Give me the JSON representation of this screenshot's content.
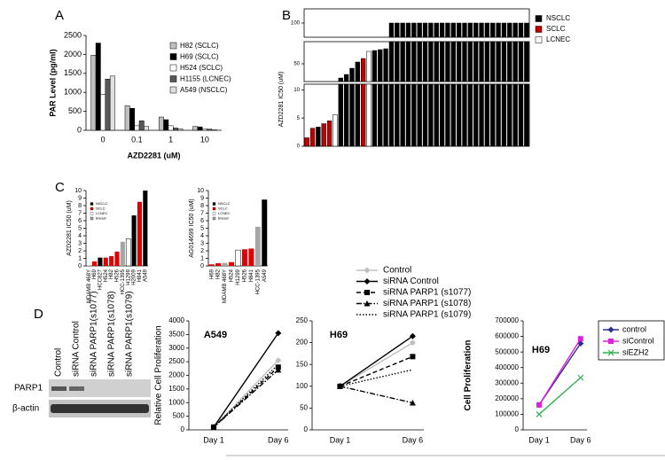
{
  "panel_labels": [
    "A",
    "B",
    "C",
    "D"
  ],
  "blot": {
    "lanes": [
      "Control",
      "siRNA Control",
      "siRNA PARP1(s1077)",
      "siRNA PARP1(s1078)",
      "siRNA PARP1(s1079)"
    ],
    "rows": [
      "PARP1",
      "β-actin"
    ]
  },
  "chart_data": [
    {
      "type": "grouped-bar",
      "y_label": "PAR Level (pg/ml)",
      "x_label": "AZD2281 (uM)",
      "categories": [
        "0",
        "0.1",
        "1",
        "10"
      ],
      "series": [
        {
          "name": "H82 (SCLC)",
          "color": "#bfbfbf",
          "values": [
            1980,
            650,
            350,
            100
          ]
        },
        {
          "name": "H69 (SCLC)",
          "color": "#000000",
          "values": [
            2300,
            580,
            280,
            90
          ]
        },
        {
          "name": "H524 (SCLC)",
          "color": "#ffffff",
          "values": [
            950,
            120,
            120,
            40
          ]
        },
        {
          "name": "H1155 (LCNEC)",
          "color": "#595959",
          "values": [
            1350,
            250,
            60,
            30
          ]
        },
        {
          "name": "A549 (NSCLC)",
          "color": "#e0e0e0",
          "values": [
            1430,
            100,
            40,
            20
          ]
        }
      ],
      "ylim": [
        0,
        2500
      ],
      "yticks": [
        0,
        500,
        1000,
        1500,
        2000,
        2500
      ]
    },
    {
      "type": "broken-bar",
      "y_label": "AZD2281 IC50 (uM)",
      "categories": [
        null,
        null,
        null,
        null,
        null,
        null,
        null,
        null,
        null,
        null,
        null,
        null,
        null,
        null,
        null,
        null,
        null,
        null,
        null,
        null,
        null,
        null,
        null,
        null,
        null,
        null,
        null,
        null,
        null,
        null,
        null,
        null,
        null,
        null,
        null,
        null,
        null,
        null,
        null,
        null
      ],
      "values": [
        1.5,
        3.2,
        3.4,
        4.0,
        4.5,
        5.6,
        34,
        38,
        45,
        52,
        56,
        64,
        65,
        66,
        67,
        100,
        100,
        100,
        100,
        100,
        100,
        100,
        100,
        100,
        100,
        100,
        100,
        100,
        100,
        100,
        100,
        100,
        100,
        100,
        100,
        100,
        100,
        100,
        100,
        100
      ],
      "colors": [
        "#c00000",
        "#c00000",
        "#000000",
        "#c00000",
        "#c00000",
        "#ffffff",
        "#000000",
        "#000000",
        "#000000",
        "#000000",
        "#c00000",
        "#ffffff",
        "#000000",
        "#000000",
        "#000000",
        "#000000",
        "#000000",
        "#000000",
        "#000000",
        "#000000",
        "#000000",
        "#000000",
        "#000000",
        "#000000",
        "#000000",
        "#000000",
        "#000000",
        "#000000",
        "#000000",
        "#000000",
        "#000000",
        "#000000",
        "#000000",
        "#000000",
        "#000000",
        "#000000",
        "#000000",
        "#000000",
        "#000000",
        "#000000"
      ],
      "axis_segments": [
        [
          0,
          11
        ],
        [
          30,
          75
        ],
        [
          95,
          105
        ]
      ],
      "ylim": [
        0,
        105
      ],
      "yticks": [
        0,
        5,
        10,
        50,
        100
      ],
      "legend_items": [
        {
          "name": "NSCLC",
          "color": "#000000"
        },
        {
          "name": "SCLC",
          "color": "#c00000"
        },
        {
          "name": "LCNEC",
          "color": "#ffffff"
        }
      ]
    },
    {
      "type": "bar",
      "y_label": "AZD2281 IC50 (uM)",
      "categories": [
        "MDAMB 468Y",
        "H69",
        "HCC827",
        "H524",
        "H82",
        "H526",
        "HCC-1395",
        "H1299",
        "H2009",
        "H841",
        "A549"
      ],
      "values": [
        0.05,
        0.6,
        1.1,
        1.1,
        1.3,
        1.9,
        3.2,
        3.6,
        6.7,
        8.5,
        10
      ],
      "colors": [
        "#a6a6a6",
        "#e00000",
        "#000000",
        "#e00000",
        "#e00000",
        "#e00000",
        "#a6a6a6",
        "#ffffff",
        "#000000",
        "#e00000",
        "#000000"
      ],
      "ylim": [
        0,
        10
      ],
      "yticks": [
        0,
        1,
        2,
        3,
        4,
        5,
        6,
        7,
        8,
        9,
        10
      ],
      "legend_items": [
        {
          "name": "NSCLC",
          "color": "#000000"
        },
        {
          "name": "SCLC",
          "color": "#e00000"
        },
        {
          "name": "LCNEC",
          "color": "#ffffff"
        },
        {
          "name": "Breast",
          "color": "#a6a6a6"
        }
      ]
    },
    {
      "type": "bar",
      "y_label": "AG014699 IC50 (uM)",
      "categories": [
        "H69",
        "H82",
        "MDAMB 468Y",
        "H524",
        "H1299",
        "H526",
        "H841",
        "HCC-1395",
        "A549"
      ],
      "values": [
        0.2,
        0.35,
        0.4,
        0.5,
        2.1,
        2.2,
        2.3,
        5.2,
        8.8
      ],
      "colors": [
        "#e00000",
        "#e00000",
        "#a6a6a6",
        "#e00000",
        "#ffffff",
        "#e00000",
        "#e00000",
        "#a6a6a6",
        "#000000"
      ],
      "ylim": [
        0,
        10
      ],
      "yticks": [
        0,
        1,
        2,
        3,
        4,
        5,
        6,
        7,
        8,
        9,
        10
      ],
      "legend_items": [
        {
          "name": "NSCLC",
          "color": "#000000"
        },
        {
          "name": "SCLC",
          "color": "#e00000"
        },
        {
          "name": "LCNEC",
          "color": "#ffffff"
        },
        {
          "name": "Breast",
          "color": "#a6a6a6"
        }
      ]
    },
    {
      "type": "line",
      "title": "A549",
      "y_label": "Relative Cell Proliferation",
      "legend": "external",
      "categories": [
        "Day 1",
        "Day 6"
      ],
      "series": [
        {
          "name": "Control",
          "color": "#bfbfbf",
          "dash": "solid",
          "marker": "diamond",
          "values": [
            100,
            2550
          ]
        },
        {
          "name": "siRNA Control",
          "color": "#000000",
          "dash": "solid",
          "marker": "diamond",
          "values": [
            100,
            3550
          ]
        },
        {
          "name": "siRNA PARP1 (s1077)",
          "color": "#000000",
          "dash": "dashed",
          "marker": "square",
          "values": [
            100,
            2300
          ]
        },
        {
          "name": "siRNA PARP1 (s1078)",
          "color": "#000000",
          "dash": "dashdot",
          "marker": "triangle",
          "values": [
            100,
            2200
          ]
        },
        {
          "name": "siRNA PARP1 (s1079)",
          "color": "#000000",
          "dash": "dotted",
          "marker": "none",
          "values": [
            100,
            2400
          ]
        }
      ],
      "ylim": [
        0,
        4000
      ],
      "yticks": [
        0,
        500,
        1000,
        1500,
        2000,
        2500,
        3000,
        3500,
        4000
      ]
    },
    {
      "type": "line",
      "title": "H69",
      "legend": "none",
      "categories": [
        "Day 1",
        "Day 6"
      ],
      "series": [
        {
          "name": "Control",
          "color": "#bfbfbf",
          "dash": "solid",
          "marker": "diamond",
          "values": [
            100,
            200
          ]
        },
        {
          "name": "siRNA Control",
          "color": "#000000",
          "dash": "solid",
          "marker": "diamond",
          "values": [
            100,
            215
          ]
        },
        {
          "name": "siRNA PARP1 (s1077)",
          "color": "#000000",
          "dash": "dashed",
          "marker": "square",
          "values": [
            100,
            168
          ]
        },
        {
          "name": "siRNA PARP1 (s1078)",
          "color": "#000000",
          "dash": "dashdot",
          "marker": "triangle",
          "values": [
            100,
            62
          ]
        },
        {
          "name": "siRNA PARP1 (s1079)",
          "color": "#000000",
          "dash": "dotted",
          "marker": "none",
          "values": [
            100,
            138
          ]
        }
      ],
      "ylim": [
        0,
        250
      ],
      "yticks": [
        0,
        50,
        100,
        150,
        200,
        250
      ]
    },
    {
      "type": "line",
      "title": "H69",
      "y_label": "Cell Proliferation",
      "legend": "box",
      "categories": [
        "Day 1",
        "Day 6"
      ],
      "series": [
        {
          "name": "control",
          "color": "#2e2e8f",
          "dash": "solid",
          "marker": "diamond",
          "values": [
            160000,
            555000
          ]
        },
        {
          "name": "siControl",
          "color": "#e020e0",
          "dash": "solid",
          "marker": "square",
          "values": [
            160000,
            585000
          ]
        },
        {
          "name": "siEZH2",
          "color": "#30b050",
          "dash": "solid",
          "marker": "x",
          "values": [
            100000,
            335000
          ]
        }
      ],
      "ylim": [
        0,
        700000
      ],
      "yticks": [
        0,
        100000,
        200000,
        300000,
        400000,
        500000,
        600000,
        700000
      ]
    }
  ]
}
